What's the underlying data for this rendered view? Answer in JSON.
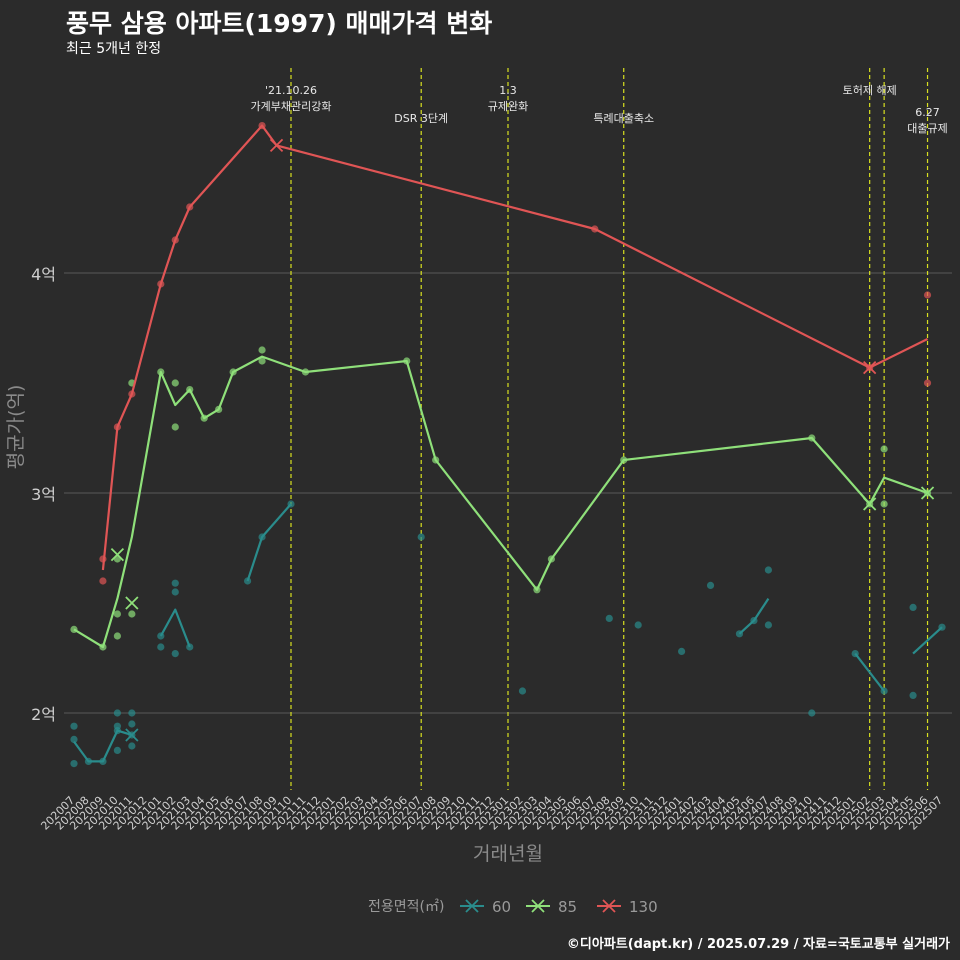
{
  "chart_data": {
    "type": "line",
    "title": "풍무 삼용 아파트(1997) 매매가격 변화",
    "subtitle": "최근 5개년 한정",
    "caption": "©디아파트(dapt.kr) / 2025.07.29 / 자료=국토교통부 실거래가",
    "xlabel": "거래년월",
    "ylabel": "평균가(억)",
    "ylim": [
      1.65,
      4.95
    ],
    "yticks": [
      {
        "v": 2,
        "label": "2억"
      },
      {
        "v": 3,
        "label": "3억"
      },
      {
        "v": 4,
        "label": "4억"
      }
    ],
    "categories": [
      "202007",
      "202008",
      "202009",
      "202010",
      "202011",
      "202012",
      "202101",
      "202102",
      "202103",
      "202104",
      "202105",
      "202106",
      "202107",
      "202108",
      "202109",
      "202110",
      "202111",
      "202112",
      "202201",
      "202202",
      "202203",
      "202204",
      "202205",
      "202206",
      "202207",
      "202208",
      "202209",
      "202210",
      "202211",
      "202212",
      "202301",
      "202302",
      "202303",
      "202304",
      "202305",
      "202306",
      "202307",
      "202308",
      "202309",
      "202310",
      "202311",
      "202312",
      "202401",
      "202402",
      "202403",
      "202404",
      "202405",
      "202406",
      "202407",
      "202408",
      "202409",
      "202410",
      "202411",
      "202412",
      "202501",
      "202502",
      "202503",
      "202504",
      "202505",
      "202506",
      "202507"
    ],
    "legend_title": "전용면적(㎡)",
    "series": [
      {
        "name": "60",
        "color": "#2a8c8c",
        "line": [
          [
            "202007",
            1.87
          ],
          [
            "202008",
            1.78
          ],
          [
            "202009",
            1.78
          ],
          [
            "202010",
            1.92
          ],
          [
            "202011",
            1.9
          ],
          null,
          [
            "202101",
            2.35
          ],
          [
            "202102",
            2.47
          ],
          [
            "202103",
            2.3
          ],
          null,
          [
            "202107",
            2.6
          ],
          [
            "202108",
            2.8
          ],
          [
            "202110",
            2.95
          ],
          null,
          [
            "202405",
            2.36
          ],
          [
            "202406",
            2.42
          ],
          [
            "202407",
            2.52
          ],
          null,
          [
            "202501",
            2.27
          ],
          [
            "202503",
            2.1
          ],
          null,
          [
            "202505",
            2.27
          ],
          [
            "202507",
            2.39
          ]
        ],
        "points": [
          [
            "202007",
            1.94
          ],
          [
            "202007",
            1.88
          ],
          [
            "202007",
            1.77
          ],
          [
            "202008",
            1.78
          ],
          [
            "202009",
            1.78
          ],
          [
            "202010",
            2.0
          ],
          [
            "202010",
            1.94
          ],
          [
            "202010",
            1.92
          ],
          [
            "202010",
            1.83
          ],
          [
            "202011",
            2.0
          ],
          [
            "202011",
            1.95
          ],
          [
            "202011",
            1.9
          ],
          [
            "202011",
            1.85
          ],
          [
            "202101",
            2.35
          ],
          [
            "202101",
            2.3
          ],
          [
            "202102",
            2.59
          ],
          [
            "202102",
            2.55
          ],
          [
            "202102",
            2.27
          ],
          [
            "202103",
            2.3
          ],
          [
            "202107",
            2.6
          ],
          [
            "202108",
            2.8
          ],
          [
            "202110",
            2.95
          ],
          [
            "202207",
            2.8
          ],
          [
            "202302",
            2.1
          ],
          [
            "202308",
            2.43
          ],
          [
            "202310",
            2.4
          ],
          [
            "202401",
            2.28
          ],
          [
            "202403",
            2.58
          ],
          [
            "202405",
            2.36
          ],
          [
            "202406",
            2.42
          ],
          [
            "202407",
            2.65
          ],
          [
            "202407",
            2.4
          ],
          [
            "202410",
            2.0
          ],
          [
            "202501",
            2.27
          ],
          [
            "202503",
            2.1
          ],
          [
            "202505",
            2.48
          ],
          [
            "202505",
            2.08
          ],
          [
            "202507",
            2.39
          ]
        ],
        "crosses": [
          [
            "202011",
            1.9
          ]
        ]
      },
      {
        "name": "85",
        "color": "#8fe07a",
        "line": [
          [
            "202007",
            2.38
          ],
          [
            "202009",
            2.3
          ],
          [
            "202010",
            2.52
          ],
          [
            "202011",
            2.8
          ],
          [
            "202101",
            3.55
          ],
          [
            "202102",
            3.4
          ],
          [
            "202103",
            3.47
          ],
          [
            "202104",
            3.34
          ],
          [
            "202105",
            3.38
          ],
          [
            "202106",
            3.55
          ],
          [
            "202108",
            3.62
          ],
          [
            "202111",
            3.55
          ],
          [
            "202206",
            3.6
          ],
          [
            "202208",
            3.15
          ],
          [
            "202303",
            2.56
          ],
          [
            "202304",
            2.7
          ],
          [
            "202309",
            3.15
          ],
          [
            "202410",
            3.25
          ],
          [
            "202502",
            2.95
          ],
          [
            "202503",
            3.07
          ],
          [
            "202506",
            3.0
          ]
        ],
        "points": [
          [
            "202007",
            2.38
          ],
          [
            "202009",
            2.3
          ],
          [
            "202010",
            2.7
          ],
          [
            "202010",
            2.45
          ],
          [
            "202010",
            2.35
          ],
          [
            "202011",
            3.5
          ],
          [
            "202011",
            2.45
          ],
          [
            "202101",
            3.55
          ],
          [
            "202102",
            3.5
          ],
          [
            "202102",
            3.3
          ],
          [
            "202103",
            3.47
          ],
          [
            "202104",
            3.34
          ],
          [
            "202105",
            3.38
          ],
          [
            "202106",
            3.55
          ],
          [
            "202108",
            3.65
          ],
          [
            "202108",
            3.6
          ],
          [
            "202111",
            3.55
          ],
          [
            "202206",
            3.6
          ],
          [
            "202208",
            3.15
          ],
          [
            "202303",
            2.56
          ],
          [
            "202304",
            2.7
          ],
          [
            "202309",
            3.15
          ],
          [
            "202410",
            3.25
          ],
          [
            "202502",
            2.95
          ],
          [
            "202503",
            3.2
          ],
          [
            "202503",
            2.95
          ],
          [
            "202506",
            3.0
          ]
        ],
        "crosses": [
          [
            "202010",
            2.72
          ],
          [
            "202011",
            2.5
          ],
          [
            "202502",
            2.95
          ],
          [
            "202506",
            3.0
          ]
        ]
      },
      {
        "name": "130",
        "color": "#e05555",
        "line": [
          [
            "202009",
            2.65
          ],
          [
            "202010",
            3.3
          ],
          [
            "202011",
            3.45
          ],
          [
            "202101",
            3.95
          ],
          [
            "202102",
            4.15
          ],
          [
            "202103",
            4.3
          ],
          [
            "202108",
            4.67
          ],
          [
            "202109",
            4.58
          ],
          [
            "202307",
            4.2
          ],
          [
            "202502",
            3.57
          ],
          [
            "202506",
            3.7
          ]
        ],
        "points": [
          [
            "202009",
            2.7
          ],
          [
            "202009",
            2.6
          ],
          [
            "202010",
            3.3
          ],
          [
            "202011",
            3.45
          ],
          [
            "202101",
            3.95
          ],
          [
            "202102",
            4.15
          ],
          [
            "202103",
            4.3
          ],
          [
            "202108",
            4.67
          ],
          [
            "202307",
            4.2
          ],
          [
            "202502",
            3.57
          ],
          [
            "202506",
            3.9
          ],
          [
            "202506",
            3.5
          ]
        ],
        "crosses": [
          [
            "202109",
            4.58
          ],
          [
            "202502",
            3.57
          ]
        ]
      }
    ],
    "annotations": [
      {
        "x": "202110",
        "lines": [
          "'21.10.26",
          "가계부채관리강화"
        ],
        "row": 0
      },
      {
        "x": "202207",
        "lines": [
          "DSR 3단계"
        ],
        "row": 1
      },
      {
        "x": "202301",
        "lines": [
          "1.3",
          "규제완화"
        ],
        "row": 0
      },
      {
        "x": "202309",
        "lines": [
          "특례대출축소"
        ],
        "row": 1
      },
      {
        "x": "202502",
        "lines": [
          "토허제 해제"
        ],
        "row": 0
      },
      {
        "x": "202503",
        "lines": [],
        "row": 0
      },
      {
        "x": "202506",
        "lines": [
          "6.27",
          "대출규제"
        ],
        "row": 2
      }
    ]
  }
}
